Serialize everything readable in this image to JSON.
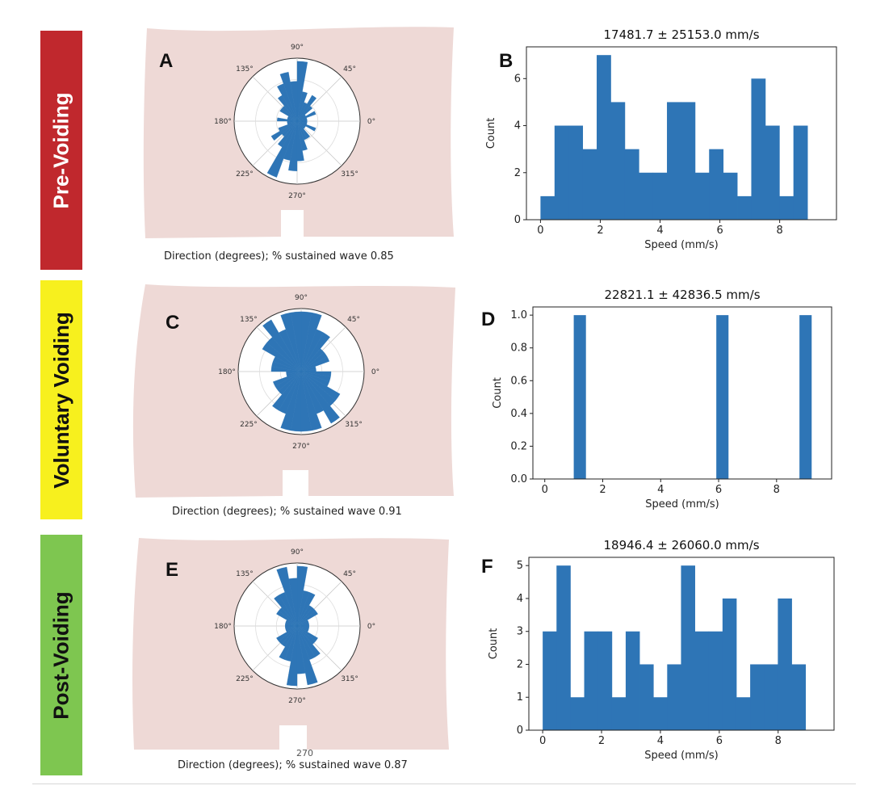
{
  "colors": {
    "bar": "#2e75b6",
    "body_shape": "#eed9d6",
    "pre_voiding": "#c0282d",
    "voluntary_voiding": "#f7f01e",
    "post_voiding": "#7ec650"
  },
  "rows": [
    {
      "label": "Pre-Voiding",
      "rose_letter": "A",
      "hist_letter": "B",
      "caption": "Direction (degrees); % sustained wave 0.85"
    },
    {
      "label": "Voluntary Voiding",
      "rose_letter": "C",
      "hist_letter": "D",
      "caption": "Direction (degrees); % sustained wave 0.91"
    },
    {
      "label": "Post-Voiding",
      "rose_letter": "E",
      "hist_letter": "F",
      "caption": "Direction (degrees); % sustained wave 0.87",
      "stray_text": "270"
    }
  ],
  "rose_angle_labels": [
    "0°",
    "45°",
    "90°",
    "135°",
    "180°",
    "225°",
    "270°",
    "315°"
  ],
  "chart_data": [
    {
      "type": "bar",
      "title": "17481.7 ± 25153.0 mm/s",
      "xlabel": "Speed (mm/s)",
      "ylabel": "Count",
      "bin_width": 0.47,
      "x_start": 0.0,
      "values": [
        1,
        4,
        4,
        3,
        7,
        5,
        3,
        2,
        2,
        5,
        5,
        2,
        3,
        2,
        1,
        6,
        4,
        1,
        4
      ],
      "xlim": [
        -0.47,
        9.9
      ],
      "ylim": [
        0,
        7.35
      ],
      "xticks": [
        0,
        2,
        4,
        6,
        8
      ],
      "xtick_labels": [
        "0",
        "2",
        "4",
        "6",
        "8"
      ],
      "yticks": [
        0,
        2,
        4,
        6
      ],
      "ytick_labels": [
        "0",
        "2",
        "4",
        "6"
      ]
    },
    {
      "type": "bar",
      "title": "22821.1 ± 42836.5 mm/s",
      "xlabel": "Speed (mm/s)",
      "ylabel": "Count",
      "bin_width": 0.41,
      "x_start": 1.0,
      "values": [
        1,
        0,
        0,
        0,
        0,
        0,
        0,
        0,
        0,
        0,
        0,
        0,
        1,
        0,
        0,
        0,
        0,
        0,
        0,
        1
      ],
      "xlim": [
        -0.41,
        9.9
      ],
      "ylim": [
        0,
        1.05
      ],
      "xticks": [
        0,
        2,
        4,
        6,
        8
      ],
      "xtick_labels": [
        "0",
        "2",
        "4",
        "6",
        "8"
      ],
      "yticks": [
        0,
        0.2,
        0.4,
        0.6,
        0.8,
        1.0
      ],
      "ytick_labels": [
        "0.0",
        "0.2",
        "0.4",
        "0.6",
        "0.8",
        "1.0"
      ]
    },
    {
      "type": "bar",
      "title": "18946.4 ± 26060.0 mm/s",
      "xlabel": "Speed (mm/s)",
      "ylabel": "Count",
      "bin_width": 0.47,
      "x_start": 0.0,
      "values": [
        3,
        5,
        1,
        3,
        3,
        1,
        3,
        2,
        1,
        2,
        5,
        3,
        3,
        4,
        1,
        2,
        2,
        4,
        2
      ],
      "xlim": [
        -0.47,
        9.9
      ],
      "ylim": [
        0,
        5.25
      ],
      "xticks": [
        0,
        2,
        4,
        6,
        8
      ],
      "xtick_labels": [
        "0",
        "2",
        "4",
        "6",
        "8"
      ],
      "yticks": [
        0,
        1,
        2,
        3,
        4,
        5
      ],
      "ytick_labels": [
        "0",
        "1",
        "2",
        "3",
        "4",
        "5"
      ]
    }
  ],
  "rose_data": [
    {
      "type": "rose",
      "direction_counts": [
        1,
        1,
        2,
        1,
        2,
        3,
        2,
        3,
        6,
        4,
        5,
        4,
        3,
        2,
        2,
        1,
        1,
        2,
        1,
        1,
        2,
        3,
        2,
        3,
        6,
        4,
        5,
        4,
        3,
        2,
        2,
        1,
        1,
        2,
        1,
        1
      ]
    },
    {
      "type": "rose",
      "direction_counts": [
        1,
        1,
        2,
        2,
        2,
        3,
        3,
        4,
        4,
        4,
        4,
        3,
        4,
        3,
        3,
        2,
        2,
        2,
        1,
        1,
        2,
        2,
        2,
        3,
        3,
        4,
        4,
        4,
        4,
        3,
        4,
        3,
        3,
        2,
        2,
        2
      ]
    },
    {
      "type": "rose",
      "direction_counts": [
        1,
        1,
        1,
        2,
        2,
        2,
        3,
        3,
        5,
        4,
        5,
        3,
        3,
        2,
        2,
        1,
        1,
        1,
        1,
        1,
        1,
        2,
        2,
        2,
        3,
        3,
        5,
        4,
        5,
        3,
        3,
        2,
        2,
        1,
        1,
        1
      ]
    }
  ]
}
